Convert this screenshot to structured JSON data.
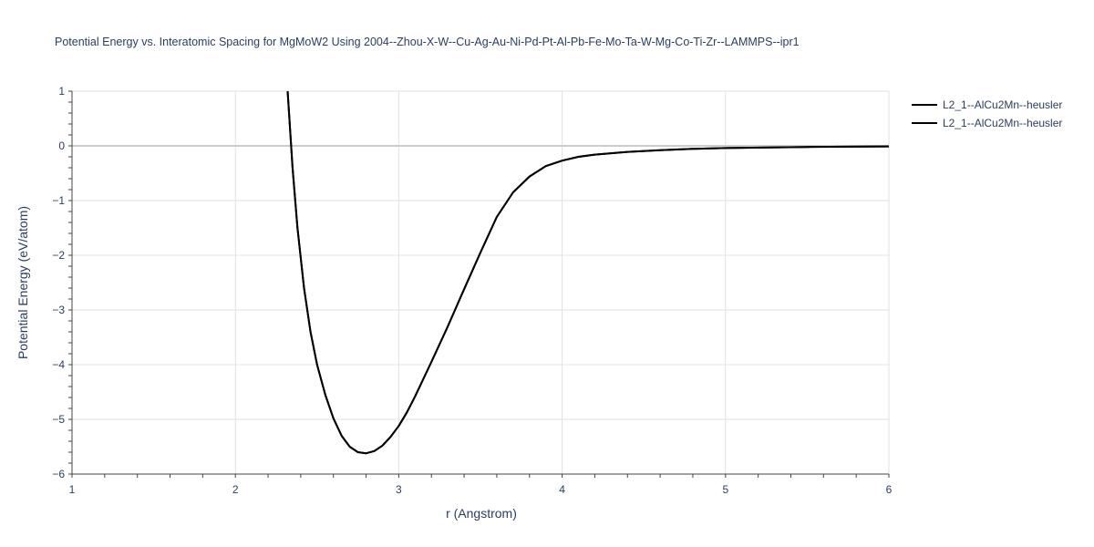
{
  "chart_data": {
    "type": "line",
    "title": "Potential Energy vs. Interatomic Spacing for MgMoW2 Using 2004--Zhou-X-W--Cu-Ag-Au-Ni-Pd-Pt-Al-Pb-Fe-Mo-Ta-W-Mg-Co-Ti-Zr--LAMMPS--ipr1",
    "xlabel": "r (Angstrom)",
    "ylabel": "Potential Energy (eV/atom)",
    "xlim": [
      1,
      6
    ],
    "ylim": [
      -6,
      1
    ],
    "x_ticks": [
      "1",
      "2",
      "3",
      "4",
      "5",
      "6"
    ],
    "y_ticks": [
      "1",
      "0",
      "−1",
      "−2",
      "−3",
      "−4",
      "−5",
      "−6"
    ],
    "grid": true,
    "legend_position": "top-right",
    "series": [
      {
        "name": "L2_1--AlCu2Mn--heusler",
        "color": "#000000",
        "x": [
          2.32,
          2.35,
          2.38,
          2.42,
          2.46,
          2.5,
          2.55,
          2.6,
          2.65,
          2.7,
          2.75,
          2.8,
          2.85,
          2.9,
          2.95,
          3.0,
          3.05,
          3.1,
          3.2,
          3.3,
          3.4,
          3.5,
          3.6,
          3.7,
          3.8,
          3.9,
          4.0,
          4.1,
          4.2,
          4.4,
          4.6,
          4.8,
          5.0,
          5.5,
          6.0
        ],
        "y": [
          1.0,
          -0.4,
          -1.5,
          -2.6,
          -3.4,
          -4.0,
          -4.55,
          -4.98,
          -5.3,
          -5.5,
          -5.6,
          -5.62,
          -5.58,
          -5.48,
          -5.32,
          -5.12,
          -4.87,
          -4.58,
          -3.95,
          -3.3,
          -2.62,
          -1.95,
          -1.3,
          -0.85,
          -0.56,
          -0.37,
          -0.27,
          -0.2,
          -0.16,
          -0.11,
          -0.08,
          -0.055,
          -0.04,
          -0.02,
          -0.01
        ]
      },
      {
        "name": "L2_1--AlCu2Mn--heusler",
        "color": "#000000",
        "x": [
          2.32,
          2.35,
          2.38,
          2.42,
          2.46,
          2.5,
          2.55,
          2.6,
          2.65,
          2.7,
          2.75,
          2.8,
          2.85,
          2.9,
          2.95,
          3.0,
          3.05,
          3.1,
          3.2,
          3.3,
          3.4,
          3.5,
          3.6,
          3.7,
          3.8,
          3.9,
          4.0,
          4.1,
          4.2,
          4.4,
          4.6,
          4.8,
          5.0,
          5.5,
          6.0
        ],
        "y": [
          1.0,
          -0.4,
          -1.5,
          -2.6,
          -3.4,
          -4.0,
          -4.55,
          -4.98,
          -5.3,
          -5.5,
          -5.6,
          -5.62,
          -5.58,
          -5.48,
          -5.32,
          -5.12,
          -4.87,
          -4.58,
          -3.95,
          -3.3,
          -2.62,
          -1.95,
          -1.3,
          -0.85,
          -0.56,
          -0.37,
          -0.27,
          -0.2,
          -0.16,
          -0.11,
          -0.08,
          -0.055,
          -0.04,
          -0.02,
          -0.01
        ]
      }
    ]
  }
}
